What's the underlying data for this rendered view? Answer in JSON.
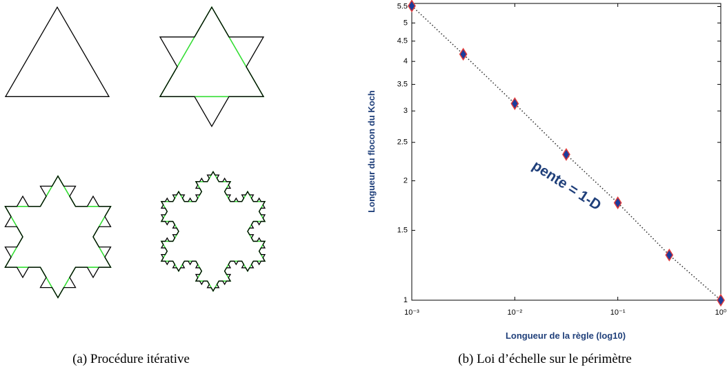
{
  "captions": [
    "(a) Procédure itérative",
    "(b) Loi d’échelle sur le périmètre"
  ],
  "chart_data": {
    "type": "scatter",
    "x_label": "Longueur de la règle (log10)",
    "y_label": "Longueur du flocon du Koch",
    "annotation": "pente = 1-D",
    "x": [
      0.001,
      0.00316,
      0.01,
      0.0316,
      0.1,
      0.316,
      1
    ],
    "series": [
      {
        "color": "#1c3c9c",
        "edge_color": "#e03a3a",
        "values": [
          5.52,
          4.17,
          3.13,
          2.33,
          1.76,
          1.3,
          1
        ]
      }
    ],
    "line_style": "dotted",
    "xscale": "log",
    "yscale": "log",
    "xlim": [
      0.001,
      1
    ],
    "ylim": [
      1,
      5.6
    ],
    "xticks": [
      {
        "value": 0.001,
        "label": "10⁻³"
      },
      {
        "value": 0.01,
        "label": "10⁻²"
      },
      {
        "value": 0.1,
        "label": "10⁻¹"
      },
      {
        "value": 1,
        "label": "10⁰"
      }
    ],
    "yticks": [
      1,
      1.5,
      2,
      2.5,
      3,
      3.5,
      4,
      4.5,
      5,
      5.5
    ]
  }
}
